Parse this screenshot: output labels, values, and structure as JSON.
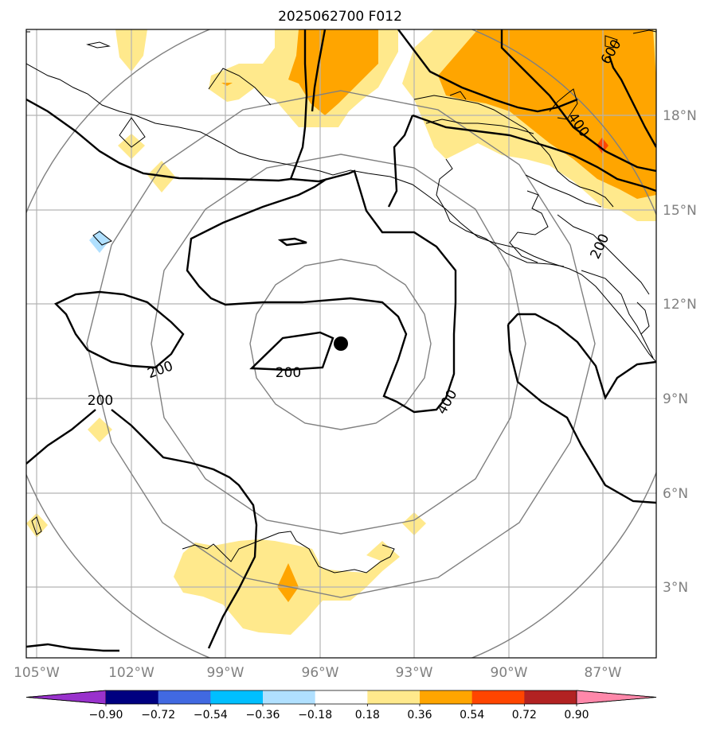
{
  "title": "2025062700 F012",
  "axes": {
    "x_ticks": [
      "105°W",
      "102°W",
      "99°W",
      "96°W",
      "93°W",
      "90°W",
      "87°W"
    ],
    "x_tick_lons": [
      105,
      102,
      99,
      96,
      93,
      90,
      87
    ],
    "y_ticks": [
      "18°N",
      "15°N",
      "12°N",
      "9°N",
      "6°N",
      "3°N"
    ],
    "y_tick_lats": [
      18,
      15,
      12,
      9,
      6,
      3
    ],
    "lon_range_deg_west": [
      105.3,
      85.3
    ],
    "lat_range": [
      0.7,
      20.7
    ],
    "grid": true,
    "tick_label_color": "#808080"
  },
  "center_marker": {
    "lon_deg_west": 95.3,
    "lat": 10.7,
    "color": "#000000"
  },
  "range_rings_deg": [
    2.5,
    6,
    9,
    12.5
  ],
  "contour_labels": [
    {
      "text": "200",
      "lon_deg_west": 100.0,
      "lat": 10.3
    },
    {
      "text": "200",
      "lon_deg_west": 96.1,
      "lat": 10.2
    },
    {
      "text": "200",
      "lon_deg_west": 103.0,
      "lat": 8.6
    },
    {
      "text": "400",
      "lon_deg_west": 93.0,
      "lat": 9.0
    },
    {
      "text": "400",
      "lon_deg_west": 88.0,
      "lat": 17.6
    },
    {
      "text": "600",
      "lon_deg_west": 86.3,
      "lat": 19.8
    },
    {
      "text": "200",
      "lon_deg_west": 87.0,
      "lat": 13.9
    }
  ],
  "colorbar": {
    "levels": [
      -0.9,
      -0.72,
      -0.54,
      -0.36,
      -0.18,
      0.18,
      0.36,
      0.54,
      0.72,
      0.9
    ],
    "tick_labels": [
      "−0.90",
      "−0.72",
      "−0.54",
      "−0.36",
      "−0.18",
      "0.18",
      "0.36",
      "0.54",
      "0.72",
      "0.90"
    ],
    "colors": [
      "#9932CC",
      "#000080",
      "#4169E1",
      "#00BFFF",
      "#B0E0FF",
      "#FFFFFF",
      "#FFE98C",
      "#FFA500",
      "#FF4500",
      "#B22222",
      "#FF88AA"
    ],
    "extend": "both"
  },
  "fill_colors": {
    "light": "#FFE98C",
    "medium": "#FFA500",
    "strong": "#FF4500",
    "negative": "#B0E0FF"
  }
}
